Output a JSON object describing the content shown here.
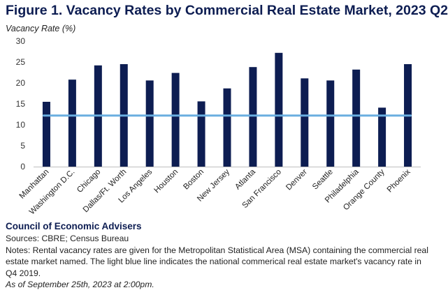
{
  "chart_data": {
    "type": "bar",
    "title": "Figure 1. Vacancy Rates by Commercial Real Estate Market, 2023 Q2",
    "ylabel": "Vacancy Rate (%)",
    "xlabel": "",
    "ylim": [
      0,
      30
    ],
    "yticks": [
      0,
      5,
      10,
      15,
      20,
      25,
      30
    ],
    "grid": false,
    "categories": [
      "Manhattan",
      "Washington D.C.",
      "Chicago",
      "Dallas/Ft. Worth",
      "Los Angeles",
      "Houston",
      "Boston",
      "New Jersey",
      "Atlanta",
      "San Francisco",
      "Denver",
      "Seattle",
      "Philadelphia",
      "Orange County",
      "Phoenix"
    ],
    "values": [
      15.5,
      20.8,
      24.2,
      24.5,
      20.6,
      22.4,
      15.6,
      18.7,
      23.8,
      27.2,
      21.1,
      20.6,
      23.2,
      14.1,
      24.5
    ],
    "reference_line": 12.2,
    "colors": {
      "bars": "#0d1d52",
      "line": "#6aaee0",
      "axis": "#bfbfbf"
    }
  },
  "footer": {
    "organization": "Council of Economic Advisers",
    "sources": "Sources: CBRE; Census Bureau",
    "notes": "Notes: Rental vacancy rates are given for the Metropolitan Statistical Area (MSA) containing the commercial real estate market named. The light blue line indicates the national commerical real estate market's vacancy rate in Q4 2019.",
    "as_of": "As of September 25th, 2023 at 2:00pm."
  }
}
